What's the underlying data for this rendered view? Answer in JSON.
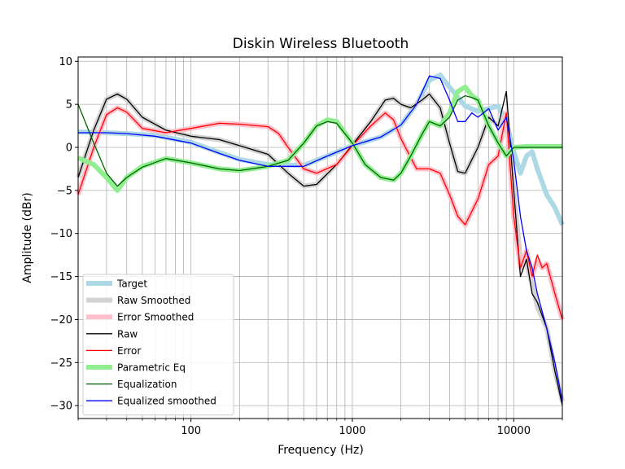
{
  "chart_data": {
    "type": "line",
    "title": "Diskin Wireless Bluetooth",
    "xlabel": "Frequency (Hz)",
    "ylabel": "Amplitude (dBr)",
    "x_scale": "log",
    "xlim": [
      20,
      20000
    ],
    "ylim": [
      -31.5,
      10.5
    ],
    "x_ticks": [
      100,
      1000,
      10000
    ],
    "x_tick_labels": [
      "100",
      "1000",
      "10000"
    ],
    "y_ticks": [
      10,
      5,
      0,
      -5,
      -10,
      -15,
      -20,
      -25,
      -30
    ],
    "y_tick_labels": [
      "10",
      "5",
      "0",
      "−5",
      "−10",
      "−15",
      "−20",
      "−25",
      "−30"
    ],
    "grid": true,
    "legend_position": "lower-left",
    "series": [
      {
        "name": "Target",
        "color": "#add8e6",
        "width": 6,
        "x": [
          20,
          30,
          40,
          60,
          100,
          150,
          200,
          300,
          500,
          700,
          1000,
          1500,
          2000,
          2500,
          3000,
          3500,
          4000,
          5000,
          6000,
          7000,
          8000,
          9000,
          10000,
          11000,
          12000,
          13000,
          14000,
          16000,
          18000,
          20000
        ],
        "y": [
          1.8,
          1.7,
          1.6,
          1.4,
          0.6,
          -0.6,
          -1.4,
          -2.0,
          -2.1,
          -1.0,
          0.2,
          1.2,
          2.6,
          5.0,
          7.8,
          8.4,
          7.0,
          4.8,
          4.2,
          4.5,
          4.8,
          3.0,
          -0.5,
          -3.0,
          -1.0,
          -0.5,
          -2.5,
          -5.5,
          -7.0,
          -9.0
        ]
      },
      {
        "name": "Raw Smoothed",
        "color": "#d3d3d3",
        "width": 6,
        "x": [
          20,
          25,
          30,
          35,
          40,
          50,
          70,
          100,
          150,
          200,
          300,
          400,
          500,
          600,
          800,
          1000,
          1300,
          1600,
          1800,
          2000,
          2300,
          2700,
          3000,
          3500,
          4000,
          4500,
          5000,
          6000,
          7000,
          8000,
          9000,
          10000,
          11000,
          12000,
          13000,
          14000,
          16000,
          18000,
          20000
        ],
        "y": [
          -3.5,
          2.0,
          5.6,
          6.2,
          5.6,
          3.5,
          2.0,
          1.3,
          0.9,
          0.2,
          -0.8,
          -3.0,
          -4.5,
          -4.3,
          -2.0,
          0.3,
          3.0,
          5.5,
          5.7,
          5.0,
          4.6,
          5.5,
          6.2,
          4.6,
          0.5,
          -2.8,
          -3.0,
          0.0,
          3.5,
          2.5,
          4.0,
          -5.0,
          -13.0,
          -13.5,
          -16.0,
          -18.5,
          -21.0,
          -26.0,
          -29.5
        ]
      },
      {
        "name": "Error Smoothed",
        "color": "#ffc0cb",
        "width": 6,
        "x": [
          20,
          25,
          30,
          35,
          40,
          50,
          70,
          100,
          150,
          200,
          300,
          350,
          400,
          500,
          600,
          800,
          1000,
          1300,
          1600,
          1800,
          2000,
          2500,
          3000,
          3500,
          4000,
          4500,
          5000,
          6000,
          7000,
          8000,
          9000,
          10000,
          11000,
          12000,
          13000,
          14000,
          15000,
          16000,
          18000,
          20000
        ],
        "y": [
          -5.5,
          0.0,
          3.8,
          4.6,
          4.1,
          2.2,
          1.7,
          2.2,
          2.8,
          2.7,
          2.4,
          1.6,
          0.0,
          -2.5,
          -3.0,
          -2.0,
          0.2,
          2.5,
          4.0,
          3.2,
          1.0,
          -2.5,
          -2.5,
          -3.0,
          -5.5,
          -8.0,
          -9.0,
          -6.0,
          -2.0,
          -1.0,
          4.0,
          -8.0,
          -14.0,
          -12.0,
          -15.0,
          -13.0,
          -14.0,
          -13.5,
          -17.0,
          -20.0
        ]
      },
      {
        "name": "Raw",
        "color": "#000000",
        "width": 1.3,
        "x": [
          20,
          25,
          30,
          35,
          40,
          50,
          70,
          100,
          150,
          200,
          300,
          400,
          500,
          600,
          800,
          1000,
          1300,
          1600,
          1800,
          2000,
          2300,
          2700,
          3000,
          3500,
          4000,
          4500,
          5000,
          6000,
          7000,
          8000,
          9000,
          10000,
          11000,
          12000,
          13000,
          14000,
          16000,
          18000,
          20000
        ],
        "y": [
          -3.5,
          2.0,
          5.6,
          6.2,
          5.6,
          3.5,
          2.0,
          1.3,
          0.9,
          0.2,
          -0.8,
          -3.0,
          -4.5,
          -4.3,
          -2.0,
          0.3,
          3.0,
          5.5,
          5.7,
          5.0,
          4.6,
          5.5,
          6.2,
          4.6,
          0.5,
          -2.8,
          -3.0,
          0.0,
          3.5,
          2.5,
          6.5,
          -5.0,
          -15.0,
          -13.0,
          -17.0,
          -18.0,
          -21.0,
          -26.0,
          -30.0
        ]
      },
      {
        "name": "Error",
        "color": "#ff0000",
        "width": 1.3,
        "x": [
          20,
          25,
          30,
          35,
          40,
          50,
          70,
          100,
          150,
          200,
          300,
          350,
          400,
          500,
          600,
          800,
          1000,
          1300,
          1600,
          1800,
          2000,
          2500,
          3000,
          3500,
          4000,
          4500,
          5000,
          6000,
          7000,
          8000,
          9000,
          10000,
          11000,
          12000,
          13000,
          14000,
          15000,
          16000,
          18000,
          20000
        ],
        "y": [
          -5.5,
          0.0,
          3.8,
          4.6,
          4.1,
          2.2,
          1.7,
          2.2,
          2.8,
          2.7,
          2.4,
          1.6,
          0.0,
          -2.5,
          -3.0,
          -2.0,
          0.2,
          2.5,
          4.0,
          3.2,
          1.0,
          -2.5,
          -2.5,
          -3.0,
          -5.5,
          -8.0,
          -9.0,
          -6.0,
          -2.0,
          -1.0,
          4.0,
          -8.0,
          -14.0,
          -12.0,
          -15.0,
          -12.5,
          -14.0,
          -13.5,
          -17.0,
          -20.0
        ]
      },
      {
        "name": "Parametric Eq",
        "color": "#90ee90",
        "width": 6,
        "x": [
          20,
          25,
          30,
          35,
          40,
          50,
          70,
          100,
          150,
          200,
          300,
          400,
          500,
          600,
          700,
          800,
          1000,
          1200,
          1500,
          1800,
          2000,
          2300,
          2700,
          3000,
          3500,
          4000,
          4500,
          5000,
          5500,
          6000,
          7000,
          8000,
          9000,
          10000,
          12000,
          14000,
          16000,
          18000,
          20000
        ],
        "y": [
          -1.2,
          -2.0,
          -3.5,
          -5.0,
          -3.5,
          -2.2,
          -1.3,
          -1.8,
          -2.5,
          -2.7,
          -2.2,
          -1.5,
          0.5,
          2.5,
          3.2,
          3.0,
          0.5,
          -2.0,
          -3.5,
          -3.8,
          -3.0,
          -1.0,
          1.5,
          3.0,
          2.5,
          4.0,
          6.5,
          7.0,
          6.0,
          5.5,
          2.5,
          0.5,
          -1.0,
          0.0,
          0.1,
          0.1,
          0.1,
          0.1,
          0.1
        ]
      },
      {
        "name": "Equalization",
        "color": "#006400",
        "width": 1.3,
        "x": [
          20,
          25,
          30,
          35,
          40,
          50,
          70,
          100,
          150,
          200,
          300,
          400,
          500,
          600,
          700,
          800,
          1000,
          1200,
          1500,
          1800,
          2000,
          2300,
          2700,
          3000,
          3500,
          4000,
          4500,
          5000,
          5500,
          6000,
          7000,
          8000,
          9000,
          10000,
          12000,
          14000,
          16000,
          18000,
          20000
        ],
        "y": [
          5.0,
          0.5,
          -3.0,
          -4.5,
          -3.5,
          -2.3,
          -1.3,
          -1.8,
          -2.5,
          -2.7,
          -2.2,
          -1.5,
          0.5,
          2.5,
          3.0,
          2.8,
          0.5,
          -2.0,
          -3.5,
          -3.8,
          -3.0,
          -1.0,
          1.5,
          3.0,
          2.5,
          3.5,
          5.5,
          6.0,
          5.8,
          5.5,
          2.5,
          0.5,
          -1.0,
          0.0,
          0.0,
          0.0,
          0.0,
          0.0,
          0.0
        ]
      },
      {
        "name": "Equalized smoothed",
        "color": "#0000ff",
        "width": 1.3,
        "x": [
          20,
          30,
          40,
          60,
          100,
          150,
          200,
          300,
          500,
          700,
          1000,
          1500,
          2000,
          2500,
          3000,
          3500,
          4000,
          4500,
          5000,
          5500,
          6000,
          7000,
          8000,
          9000,
          10000,
          11000,
          12000,
          13000,
          14000,
          16000,
          18000,
          20000
        ],
        "y": [
          1.7,
          1.7,
          1.6,
          1.3,
          0.5,
          -0.7,
          -1.5,
          -2.2,
          -2.2,
          -1.0,
          0.2,
          1.2,
          2.6,
          5.0,
          8.3,
          8.0,
          5.5,
          3.0,
          3.0,
          4.0,
          3.5,
          4.5,
          2.0,
          3.5,
          -1.5,
          -8.0,
          -12.0,
          -14.0,
          -17.0,
          -21.0,
          -25.0,
          -29.5
        ]
      }
    ]
  }
}
